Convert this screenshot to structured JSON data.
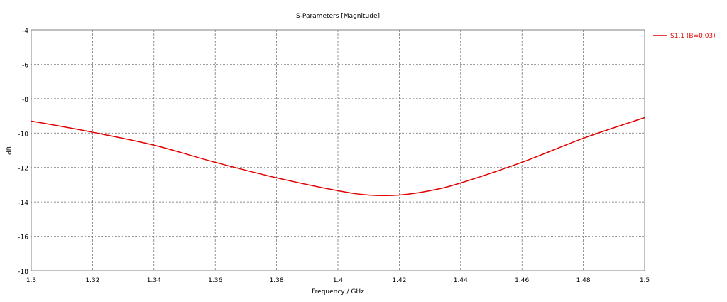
{
  "chart_data": {
    "type": "line",
    "title": "S-Parameters [Magnitude]",
    "xlabel": "Frequency / GHz",
    "ylabel": "dB",
    "xlim": [
      1.3,
      1.5
    ],
    "ylim": [
      -18,
      -4
    ],
    "xticks": [
      "1.3",
      "1.32",
      "1.34",
      "1.36",
      "1.38",
      "1.4",
      "1.42",
      "1.44",
      "1.46",
      "1.48",
      "1.5"
    ],
    "yticks": [
      "-4",
      "-6",
      "-8",
      "-10",
      "-12",
      "-14",
      "-16",
      "-18"
    ],
    "grid": true,
    "legend_position": "right",
    "series": [
      {
        "name": "S1,1 (B=0.03)",
        "color": "#e00000",
        "x": [
          1.3,
          1.32,
          1.34,
          1.36,
          1.38,
          1.4,
          1.41,
          1.42,
          1.43,
          1.44,
          1.46,
          1.48,
          1.5
        ],
        "y": [
          -9.3,
          -9.95,
          -10.7,
          -11.7,
          -12.6,
          -13.35,
          -13.6,
          -13.6,
          -13.35,
          -12.9,
          -11.7,
          -10.3,
          -9.1
        ]
      }
    ]
  }
}
